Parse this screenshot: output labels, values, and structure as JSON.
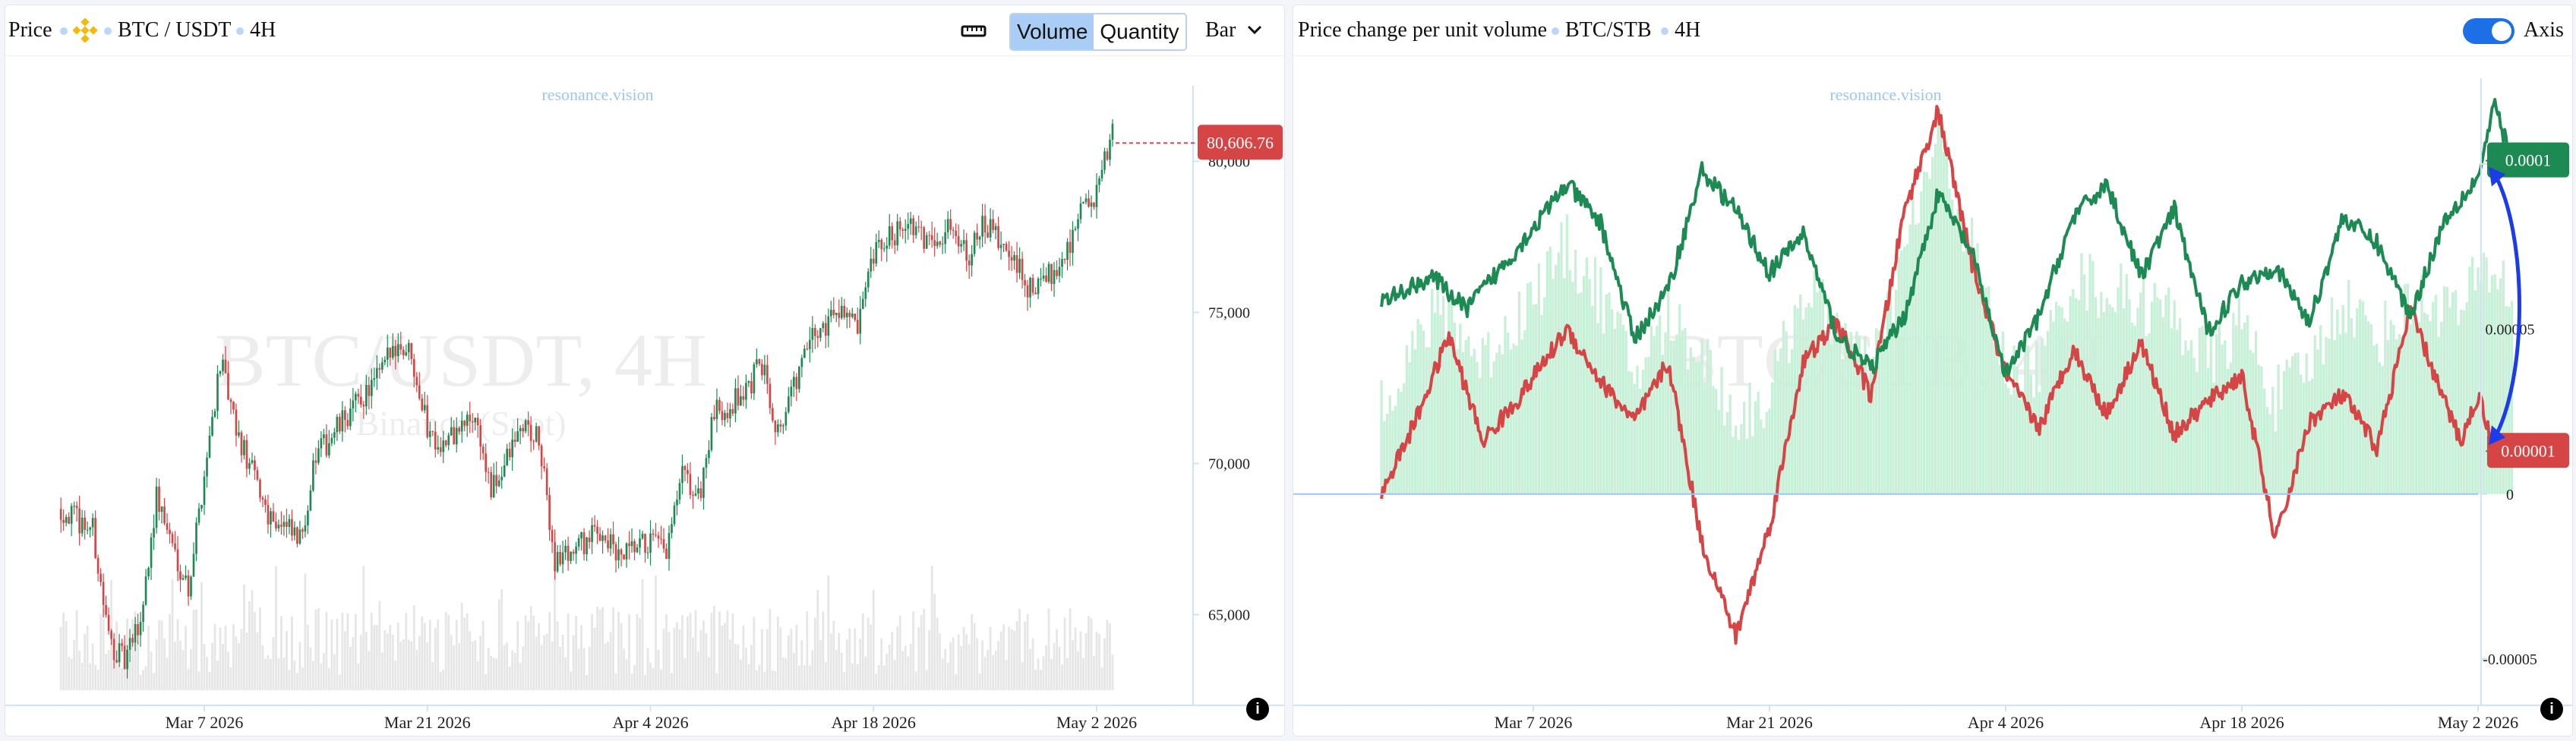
{
  "left": {
    "price_label": "Price",
    "pair": "BTC / USDT",
    "interval": "4H",
    "toggle_volume": "Volume",
    "toggle_quantity": "Quantity",
    "chart_type": "Bar",
    "watermark_line1": "BTC/USDT, 4H",
    "watermark_line2": "Binance (Spot)",
    "brand": "resonance.vision",
    "info": "i"
  },
  "right": {
    "title": "Price change per unit volume",
    "pair": "BTC/STB",
    "interval": "4H",
    "axis_label": "Axis",
    "watermark": "BTC/STB, 4H",
    "brand": "resonance.vision",
    "info": "i"
  },
  "colors": {
    "up": "#1e8a53",
    "down": "#d64545",
    "accent": "#1c6fe6",
    "green_fill": "#c8f0d8",
    "red_fill": "#f6b3bd",
    "volume_bar": "#e6e6e6",
    "arrow": "#1b3ce8"
  },
  "chart_data": [
    {
      "type": "candlestick",
      "title": "BTC / USDT",
      "x_ticks": [
        "Mar 7 2026",
        "Mar 21 2026",
        "Apr 4 2026",
        "Apr 18 2026",
        "May 2 2026"
      ],
      "y_ticks": [
        "65,000",
        "70,000",
        "75,000",
        "80,000"
      ],
      "ylim": [
        62500,
        82500
      ],
      "last_price": "80,606.76",
      "price_path": [
        [
          "Feb 26 2026",
          68500
        ],
        [
          "Feb 28 2026",
          67800
        ],
        [
          "Mar 1 2026",
          64200
        ],
        [
          "Mar 2 2026",
          63400
        ],
        [
          "Mar 3 2026",
          64800
        ],
        [
          "Mar 4 2026",
          68900
        ],
        [
          "Mar 5 2026",
          67300
        ],
        [
          "Mar 6 2026",
          65900
        ],
        [
          "Mar 8 2026",
          73400
        ],
        [
          "Mar 9 2026",
          71000
        ],
        [
          "Mar 11 2026",
          68400
        ],
        [
          "Mar 13 2026",
          67400
        ],
        [
          "Mar 14 2026",
          70200
        ],
        [
          "Mar 16 2026",
          71600
        ],
        [
          "Mar 18 2026",
          72900
        ],
        [
          "Mar 19 2026",
          74000
        ],
        [
          "Mar 20 2026",
          73700
        ],
        [
          "Mar 21 2026",
          71200
        ],
        [
          "Mar 22 2026",
          70600
        ],
        [
          "Mar 24 2026",
          71600
        ],
        [
          "Mar 25 2026",
          69000
        ],
        [
          "Mar 27 2026",
          71300
        ],
        [
          "Mar 28 2026",
          70700
        ],
        [
          "Mar 29 2026",
          66800
        ],
        [
          "Mar 30 2026",
          67100
        ],
        [
          "Apr 1 2026",
          67800
        ],
        [
          "Apr 2 2026",
          66800
        ],
        [
          "Apr 4 2026",
          67400
        ],
        [
          "Apr 5 2026",
          67000
        ],
        [
          "Apr 6 2026",
          69600
        ],
        [
          "Apr 7 2026",
          68800
        ],
        [
          "Apr 8 2026",
          71600
        ],
        [
          "Apr 10 2026",
          72400
        ],
        [
          "Apr 11 2026",
          73300
        ],
        [
          "Apr 12 2026",
          71100
        ],
        [
          "Apr 14 2026",
          74000
        ],
        [
          "Apr 16 2026",
          75300
        ],
        [
          "Apr 17 2026",
          74300
        ],
        [
          "Apr 18 2026",
          76800
        ],
        [
          "Apr 20 2026",
          78100
        ],
        [
          "Apr 21 2026",
          77400
        ],
        [
          "Apr 23 2026",
          77800
        ],
        [
          "Apr 24 2026",
          77000
        ],
        [
          "Apr 25 2026",
          77900
        ],
        [
          "Apr 27 2026",
          76500
        ],
        [
          "Apr 28 2026",
          75600
        ],
        [
          "Apr 30 2026",
          76900
        ],
        [
          "May 1 2026",
          78400
        ],
        [
          "May 2 2026",
          78800
        ],
        [
          "May 3 2026",
          81000
        ],
        [
          "May 3 2026",
          80607
        ]
      ]
    },
    {
      "type": "line",
      "title": "Price change per unit volume",
      "x_ticks": [
        "Mar 7 2026",
        "Mar 21 2026",
        "Apr 4 2026",
        "Apr 18 2026",
        "May 2 2026"
      ],
      "y_ticks": [
        "0.0001",
        "0.00005",
        "0",
        "-0.00005"
      ],
      "ylim": [
        -6.4e-05,
        0.000126
      ],
      "series": [
        {
          "name": "",
          "color": "#1e8a53",
          "last_label": "0.0001",
          "points": [
            [
              "Feb 26 2026",
              5.8e-05
            ],
            [
              "Mar 1 2026",
              6.6e-05
            ],
            [
              "Mar 3 2026",
              5.6e-05
            ],
            [
              "Mar 6 2026",
              7.4e-05
            ],
            [
              "Mar 9 2026",
              9.4e-05
            ],
            [
              "Mar 11 2026",
              8.2e-05
            ],
            [
              "Mar 13 2026",
              4.7e-05
            ],
            [
              "Mar 15 2026",
              6.2e-05
            ],
            [
              "Mar 17 2026",
              9.8e-05
            ],
            [
              "Mar 19 2026",
              8.6e-05
            ],
            [
              "Mar 21 2026",
              6.7e-05
            ],
            [
              "Mar 23 2026",
              7.9e-05
            ],
            [
              "Mar 25 2026",
              4.8e-05
            ],
            [
              "Mar 27 2026",
              3.8e-05
            ],
            [
              "Mar 29 2026",
              5.4e-05
            ],
            [
              "Mar 31 2026",
              9.1e-05
            ],
            [
              "Apr 2 2026",
              7.3e-05
            ],
            [
              "Apr 4 2026",
              3.6e-05
            ],
            [
              "Apr 6 2026",
              5.4e-05
            ],
            [
              "Apr 8 2026",
              8.4e-05
            ],
            [
              "Apr 10 2026",
              9.4e-05
            ],
            [
              "Apr 12 2026",
              6.6e-05
            ],
            [
              "Apr 14 2026",
              8.6e-05
            ],
            [
              "Apr 16 2026",
              4.9e-05
            ],
            [
              "Apr 18 2026",
              6.4e-05
            ],
            [
              "Apr 20 2026",
              6.9e-05
            ],
            [
              "Apr 22 2026",
              5.2e-05
            ],
            [
              "Apr 24 2026",
              8.4e-05
            ],
            [
              "Apr 26 2026",
              7.6e-05
            ],
            [
              "Apr 28 2026",
              5.4e-05
            ],
            [
              "Apr 30 2026",
              8.3e-05
            ],
            [
              "May 2 2026",
              9.6e-05
            ],
            [
              "May 3 2026",
              0.000118
            ],
            [
              "May 4 2026",
              0.000101
            ]
          ]
        },
        {
          "name": "",
          "color": "#d64545",
          "last_label": "0.00001",
          "points": [
            [
              "Feb 26 2026",
              0.0
            ],
            [
              "Feb 28 2026",
              2.2e-05
            ],
            [
              "Mar 2 2026",
              4.8e-05
            ],
            [
              "Mar 4 2026",
              1.6e-05
            ],
            [
              "Mar 6 2026",
              2.8e-05
            ],
            [
              "Mar 9 2026",
              5e-05
            ],
            [
              "Mar 11 2026",
              3.4e-05
            ],
            [
              "Mar 13 2026",
              2.2e-05
            ],
            [
              "Mar 15 2026",
              4e-05
            ],
            [
              "Mar 17 2026",
              -1.5e-05
            ],
            [
              "Mar 19 2026",
              -4.3e-05
            ],
            [
              "Mar 21 2026",
              -1e-05
            ],
            [
              "Mar 23 2026",
              4e-05
            ],
            [
              "Mar 25 2026",
              5.2e-05
            ],
            [
              "Mar 27 2026",
              3e-05
            ],
            [
              "Mar 29 2026",
              8.6e-05
            ],
            [
              "Mar 31 2026",
              0.000116
            ],
            [
              "Apr 2 2026",
              7e-05
            ],
            [
              "Apr 4 2026",
              3.6e-05
            ],
            [
              "Apr 6 2026",
              2e-05
            ],
            [
              "Apr 8 2026",
              4.4e-05
            ],
            [
              "Apr 10 2026",
              2.4e-05
            ],
            [
              "Apr 12 2026",
              4.6e-05
            ],
            [
              "Apr 14 2026",
              1.8e-05
            ],
            [
              "Apr 16 2026",
              2.8e-05
            ],
            [
              "Apr 18 2026",
              3.6e-05
            ],
            [
              "Apr 20 2026",
              -1.4e-05
            ],
            [
              "Apr 22 2026",
              2.2e-05
            ],
            [
              "Apr 24 2026",
              3e-05
            ],
            [
              "Apr 26 2026",
              1.4e-05
            ],
            [
              "Apr 28 2026",
              5.6e-05
            ],
            [
              "Apr 30 2026",
              2.8e-05
            ],
            [
              "May 1 2026",
              1.6e-05
            ],
            [
              "May 2 2026",
              3e-05
            ],
            [
              "May 3 2026",
              1.4e-05
            ],
            [
              "May 4 2026",
              1.3e-05
            ]
          ]
        }
      ]
    }
  ]
}
